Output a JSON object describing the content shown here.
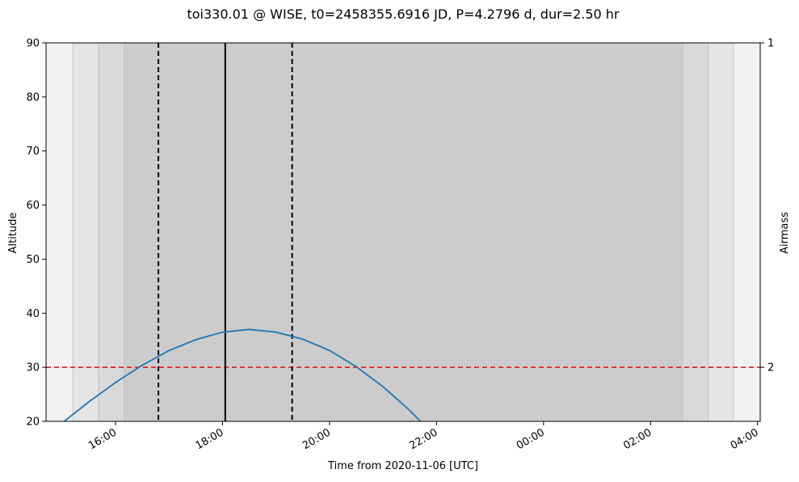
{
  "chart_data": {
    "type": "line",
    "title": "toi330.01 @ WISE, t0=2458355.6916 JD, P=4.2796 d, dur=2.50 hr",
    "xlabel": "Time from 2020-11-06 [UTC]",
    "ylabel": "Altitude",
    "y2label": "Airmass",
    "x_range_hours": [
      14.7,
      28.05
    ],
    "ylim": [
      20,
      90
    ],
    "x_ticks": [
      {
        "hour": 16,
        "label": "16:00"
      },
      {
        "hour": 18,
        "label": "18:00"
      },
      {
        "hour": 20,
        "label": "20:00"
      },
      {
        "hour": 22,
        "label": "22:00"
      },
      {
        "hour": 24,
        "label": "00:00"
      },
      {
        "hour": 26,
        "label": "02:00"
      },
      {
        "hour": 28,
        "label": "04:00"
      }
    ],
    "y_ticks": [
      20,
      30,
      40,
      50,
      60,
      70,
      80,
      90
    ],
    "y2_ticks": [
      {
        "altitude": 90,
        "label": "1"
      },
      {
        "altitude": 30,
        "label": "2"
      }
    ],
    "twilight_bands": [
      {
        "start": 15.2,
        "end": 27.55,
        "fill": "#e5e5e5"
      },
      {
        "start": 15.68,
        "end": 27.08,
        "fill": "#d9d9d9"
      },
      {
        "start": 16.16,
        "end": 26.6,
        "fill": "#cccccc"
      }
    ],
    "transit": {
      "ingress": 16.8,
      "mid": 18.05,
      "egress": 19.3
    },
    "altitude_limit": 30,
    "series": [
      {
        "color": "#1f77b4",
        "x": [
          15.0,
          15.5,
          16.0,
          16.5,
          17.0,
          17.5,
          18.0,
          18.5,
          19.0,
          19.5,
          20.0,
          20.5,
          21.0,
          21.5,
          21.7
        ],
        "y": [
          19.7,
          23.6,
          27.2,
          30.4,
          33.1,
          35.1,
          36.5,
          37.0,
          36.5,
          35.2,
          33.1,
          30.1,
          26.4,
          22.0,
          20.0
        ]
      }
    ]
  }
}
